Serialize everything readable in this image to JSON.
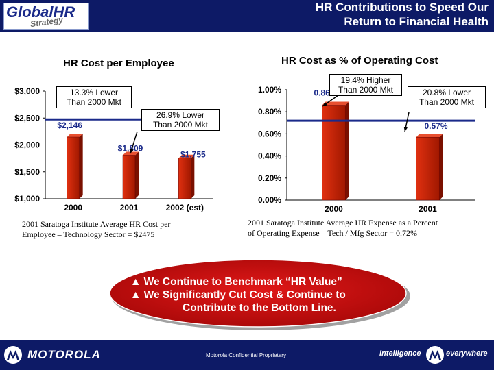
{
  "header": {
    "logo_main": "GlobalHR",
    "logo_sub": "Strategy",
    "title_line1": "HR Contributions to Speed Our",
    "title_line2": "Return to Financial Health"
  },
  "left_chart": {
    "title": "HR Cost per Employee",
    "callout1_line1": "13.3% Lower",
    "callout1_line2": "Than 2000 Mkt",
    "callout2_line1": "26.9% Lower",
    "callout2_line2": "Than 2000 Mkt",
    "note_line1": "2001 Saratoga Institute Average HR Cost per",
    "note_line2": "Employee – Technology Sector = $2475"
  },
  "right_chart": {
    "title": "HR Cost as % of Operating Cost",
    "callout1_line1": "19.4% Higher",
    "callout1_line2": "Than 2000 Mkt",
    "callout2_line1": "20.8% Lower",
    "callout2_line2": "Than 2000 Mkt",
    "note_line1": "2001 Saratoga Institute Average HR Expense as a Percent",
    "note_line2": "of Operating Expense – Tech / Mfg Sector = 0.72%"
  },
  "chart_data": [
    {
      "type": "bar",
      "title": "HR Cost per Employee",
      "categories": [
        "2000",
        "2001",
        "2002 (est)"
      ],
      "values": [
        2146,
        1809,
        1755
      ],
      "value_labels": [
        "$2,146",
        "$1,809",
        "$1,755"
      ],
      "yticks": [
        "$3,000",
        "$2,500",
        "$2,000",
        "$1,500",
        "$1,000"
      ],
      "ylim": [
        1000,
        3000
      ],
      "benchmark": 2475,
      "bar_color": "#cc2200",
      "label_color": "#1a2a8a",
      "benchmark_color": "#1a2a8a"
    },
    {
      "type": "bar",
      "title": "HR Cost as % of Operating Cost",
      "categories": [
        "2000",
        "2001"
      ],
      "values": [
        0.86,
        0.57
      ],
      "value_labels": [
        "0.86%",
        "0.57%"
      ],
      "yticks": [
        "1.00%",
        "0.80%",
        "0.60%",
        "0.40%",
        "0.20%",
        "0.00%"
      ],
      "ylim": [
        0,
        1.0
      ],
      "benchmark": 0.72,
      "bar_color": "#cc2200",
      "label_color": "#1a2a8a",
      "benchmark_color": "#1a2a8a"
    }
  ],
  "oval": {
    "bullet1": "▲  We Continue to Benchmark “HR Value”",
    "bullet2": "▲  We Significantly Cut Cost & Continue to",
    "bullet3": "Contribute to the Bottom Line."
  },
  "footer": {
    "brand": "MOTOROLA",
    "confidential": "Motorola Confidential Proprietary",
    "tagline1": "intelligence",
    "tagline2": "everywhere"
  }
}
